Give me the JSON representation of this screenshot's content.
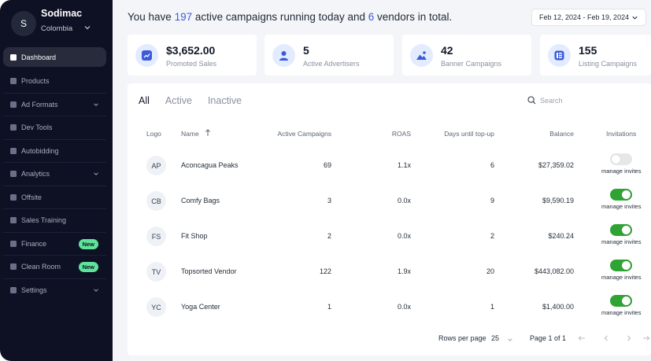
{
  "brand": {
    "avatar": "S",
    "name": "Sodimac",
    "country": "Colombia"
  },
  "sidebar": {
    "items": [
      {
        "label": "Dashboard",
        "icon": "dashboard-icon"
      },
      {
        "label": "Products",
        "icon": "products-icon"
      },
      {
        "label": "Ad Formats",
        "icon": "ad-formats-icon",
        "has_chevron": true
      },
      {
        "label": "Dev Tools",
        "icon": "dev-tools-icon"
      },
      {
        "label": "Autobidding",
        "icon": "autobidding-icon"
      },
      {
        "label": "Analytics",
        "icon": "analytics-icon",
        "has_chevron": true
      },
      {
        "label": "Offsite",
        "icon": "offsite-icon"
      },
      {
        "label": "Sales Training",
        "icon": "sales-training-icon"
      },
      {
        "label": "Finance",
        "icon": "finance-icon",
        "badge": "New"
      },
      {
        "label": "Clean Room",
        "icon": "clean-room-icon",
        "badge": "New"
      },
      {
        "label": "Settings",
        "icon": "settings-icon",
        "has_chevron": true
      }
    ]
  },
  "header": {
    "text_1": "You have ",
    "active_campaigns": "197",
    "text_2": " active campaigns running today and ",
    "vendors": "6",
    "text_3": " vendors in total.",
    "date_range": "Feb 12, 2024 - Feb 19, 2024"
  },
  "stats": [
    {
      "value": "$3,652.00",
      "label": "Promoted Sales",
      "icon": "trend-chart-icon"
    },
    {
      "value": "5",
      "label": "Active Advertisers",
      "icon": "user-icon"
    },
    {
      "value": "42",
      "label": "Banner Campaigns",
      "icon": "image-icon"
    },
    {
      "value": "155",
      "label": "Listing Campaigns",
      "icon": "list-icon"
    }
  ],
  "tabs": [
    "All",
    "Active",
    "Inactive"
  ],
  "search": {
    "placeholder": "Search"
  },
  "table": {
    "headers": {
      "logo": "Logo",
      "name": "Name",
      "active_campaigns": "Active Campaigns",
      "roas": "ROAS",
      "days": "Days until top-up",
      "balance": "Balance",
      "invitations": "Invitations"
    },
    "invite_label": "manage invites",
    "rows": [
      {
        "logo": "AP",
        "name": "Aconcagua Peaks",
        "active_campaigns": "69",
        "roas": "1.1x",
        "days": "6",
        "balance": "$27,359.02",
        "invite_on": false
      },
      {
        "logo": "CB",
        "name": "Comfy Bags",
        "active_campaigns": "3",
        "roas": "0.0x",
        "days": "9",
        "balance": "$9,590.19",
        "invite_on": true
      },
      {
        "logo": "FS",
        "name": "Fit Shop",
        "active_campaigns": "2",
        "roas": "0.0x",
        "days": "2",
        "balance": "$240.24",
        "invite_on": true
      },
      {
        "logo": "TV",
        "name": "Topsorted Vendor",
        "active_campaigns": "122",
        "roas": "1.9x",
        "days": "20",
        "balance": "$443,082.00",
        "invite_on": true
      },
      {
        "logo": "YC",
        "name": "Yoga Center",
        "active_campaigns": "1",
        "roas": "0.0x",
        "days": "1",
        "balance": "$1,400.00",
        "invite_on": true
      }
    ]
  },
  "pagination": {
    "rows_per_page_label": "Rows per page",
    "rows_per_page": "25",
    "page_info": "Page 1 of 1"
  },
  "colors": {
    "sidebar_bg": "#0e1124",
    "accent_blue": "#3b5bdb",
    "toggle_on": "#2fa334",
    "badge_new": "#5fe39a"
  }
}
